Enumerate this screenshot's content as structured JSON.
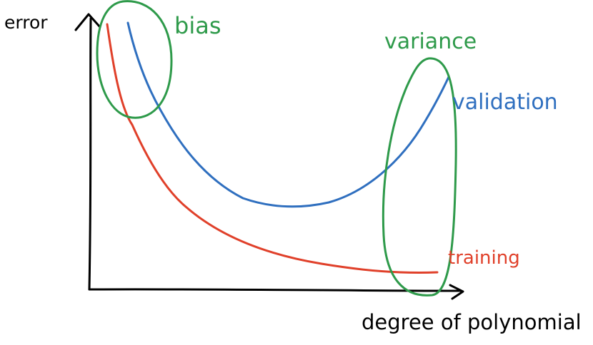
{
  "labels": {
    "y_axis": "error",
    "x_axis": "degree of polynomial",
    "bias": "bias",
    "variance": "variance",
    "validation": "validation",
    "training": "training"
  },
  "colors": {
    "axes": "#000000",
    "bias": "#2e9a4a",
    "variance": "#2e9a4a",
    "validation": "#2f6fbf",
    "training": "#e0402a"
  },
  "curves": {
    "training": "error decreases steadily as degree of polynomial increases",
    "validation": "error decreases, reaches a minimum, then increases"
  }
}
